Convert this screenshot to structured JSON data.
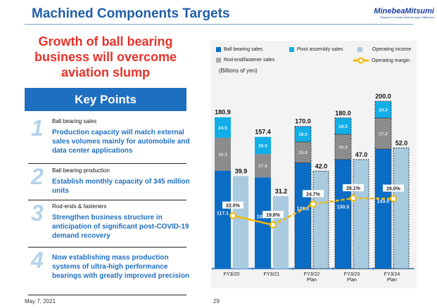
{
  "header": {
    "title": "Machined Components Targets",
    "logo_name": "MinebeaMitsumi",
    "logo_tagline": "Passion to Create Value through Difference"
  },
  "headline": [
    "Growth of ball bearing",
    "business will overcome",
    "aviation slump"
  ],
  "key_points": {
    "title": "Key Points",
    "items": [
      {
        "number": "1",
        "subtitle": "Ball bearing sales",
        "text": "Production capacity will match external sales volumes mainly for automobile and data center applications"
      },
      {
        "number": "2",
        "subtitle": "Ball bearing production",
        "text": "Establish monthly capacity of 345 million units"
      },
      {
        "number": "3",
        "subtitle": "Rod-ends & fasteners",
        "text": "Strengthen business structure in anticipation of significant post-COVID-19 demand recovery"
      },
      {
        "number": "4",
        "subtitle": "",
        "text": "Now establishing mass production systems of ultra-high performance bearings with greatly improved precision"
      }
    ]
  },
  "footer": {
    "date": "May 7, 2021",
    "page": "29"
  },
  "chart_data": {
    "type": "bar",
    "unit_label": "(Billions of yen)",
    "categories": [
      "FY3/20",
      "FY3/21",
      "FY3/22\nPlan",
      "FY3/23\nPlan",
      "FY3/24\nPlan"
    ],
    "plan_flags": [
      false,
      false,
      true,
      true,
      true
    ],
    "stacked_series": [
      {
        "name": "Ball bearing sales",
        "color": "#0a6cc4",
        "values": [
          117.1,
          109.1,
          126.5,
          130.5,
          143.0
        ]
      },
      {
        "name": "Rod-end/fastener sales",
        "color": "#8c8c8c",
        "values": [
          39.3,
          27.8,
          25.0,
          30.0,
          37.0
        ]
      },
      {
        "name": "Pivot assembly sales",
        "color": "#12aee8",
        "values": [
          24.5,
          20.5,
          18.5,
          19.5,
          20.0
        ]
      }
    ],
    "stack_totals": [
      "180.9",
      "157.4",
      "170.0",
      "180.0",
      "200.0"
    ],
    "operating_income": {
      "name": "Operating income",
      "color": "#a9cbe0",
      "values": [
        39.9,
        31.2,
        42.0,
        47.0,
        52.0
      ]
    },
    "operating_margin": {
      "name": "Operating margin",
      "color": "#f5b800",
      "values": [
        22.0,
        19.8,
        24.7,
        26.1,
        26.0
      ],
      "labels": [
        "22.0%",
        "19.8%",
        "24.7%",
        "26.1%",
        "26.0%"
      ]
    },
    "legend_placement": "top",
    "grid": false
  }
}
